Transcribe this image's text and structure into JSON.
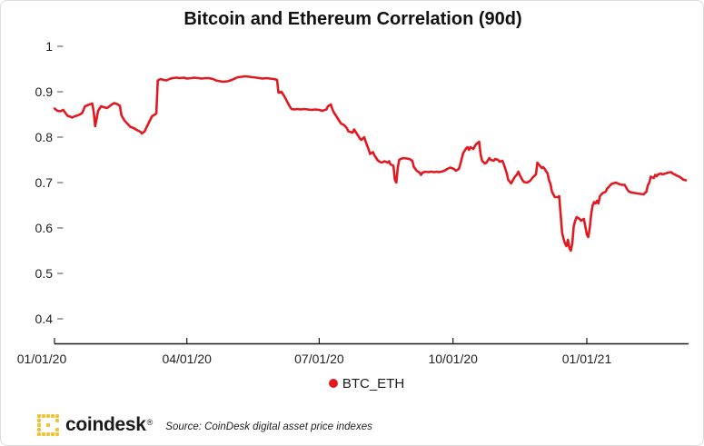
{
  "title": "Bitcoin and Ethereum Correlation (90d)",
  "legend": {
    "label": "BTC_ETH"
  },
  "footer": {
    "brand": "coindesk",
    "registered": "®",
    "source": "Source: CoinDesk digital asset price indexes",
    "logo_color": "#f2c230"
  },
  "colors": {
    "line": "#df1a21",
    "axis": "#1a1a1a",
    "tick_dash": "#8a8a8a",
    "label_text": "#1f1f1f"
  },
  "chart_data": {
    "type": "line",
    "title": "Bitcoin and Ethereum Correlation (90d)",
    "xlabel": "",
    "ylabel": "",
    "x_unit": "days since 2020-01-01",
    "xlim_days": [
      0,
      437
    ],
    "ylim": [
      0.4,
      1.0
    ],
    "grid": false,
    "legend_position": "bottom",
    "xticks": [
      {
        "day": 0,
        "label": "01/01/20"
      },
      {
        "day": 91,
        "label": "04/01/20"
      },
      {
        "day": 182,
        "label": "07/01/20"
      },
      {
        "day": 274,
        "label": "10/01/20"
      },
      {
        "day": 366,
        "label": "01/01/21"
      }
    ],
    "yticks": [
      "1",
      "0.9",
      "0.8",
      "0.7",
      "0.6",
      "0.5",
      "0.4"
    ],
    "ytick_values": [
      1.0,
      0.9,
      0.8,
      0.7,
      0.6,
      0.5,
      0.4
    ],
    "series": [
      {
        "name": "BTC_ETH",
        "color": "#df1a21",
        "points": [
          [
            0,
            0.863
          ],
          [
            2,
            0.858
          ],
          [
            4,
            0.857
          ],
          [
            6,
            0.86
          ],
          [
            9,
            0.847
          ],
          [
            11,
            0.845
          ],
          [
            12,
            0.843
          ],
          [
            14,
            0.846
          ],
          [
            16,
            0.848
          ],
          [
            18,
            0.851
          ],
          [
            19,
            0.853
          ],
          [
            21,
            0.868
          ],
          [
            24,
            0.872
          ],
          [
            26,
            0.874
          ],
          [
            27,
            0.855
          ],
          [
            28,
            0.824
          ],
          [
            30,
            0.858
          ],
          [
            32,
            0.868
          ],
          [
            34,
            0.866
          ],
          [
            36,
            0.864
          ],
          [
            37,
            0.866
          ],
          [
            39,
            0.871
          ],
          [
            41,
            0.875
          ],
          [
            43,
            0.873
          ],
          [
            45,
            0.869
          ],
          [
            46,
            0.848
          ],
          [
            48,
            0.837
          ],
          [
            50,
            0.83
          ],
          [
            52,
            0.823
          ],
          [
            55,
            0.819
          ],
          [
            57,
            0.815
          ],
          [
            59,
            0.812
          ],
          [
            60,
            0.808
          ],
          [
            62,
            0.813
          ],
          [
            63,
            0.82
          ],
          [
            65,
            0.833
          ],
          [
            67,
            0.846
          ],
          [
            69,
            0.85
          ],
          [
            70,
            0.852
          ],
          [
            71,
            0.925
          ],
          [
            73,
            0.928
          ],
          [
            75,
            0.926
          ],
          [
            77,
            0.925
          ],
          [
            79,
            0.928
          ],
          [
            81,
            0.93
          ],
          [
            84,
            0.931
          ],
          [
            86,
            0.93
          ],
          [
            89,
            0.931
          ],
          [
            91,
            0.929
          ],
          [
            94,
            0.93
          ],
          [
            96,
            0.931
          ],
          [
            99,
            0.93
          ],
          [
            101,
            0.929
          ],
          [
            104,
            0.93
          ],
          [
            106,
            0.93
          ],
          [
            109,
            0.928
          ],
          [
            111,
            0.925
          ],
          [
            114,
            0.923
          ],
          [
            116,
            0.922
          ],
          [
            119,
            0.923
          ],
          [
            121,
            0.925
          ],
          [
            124,
            0.929
          ],
          [
            126,
            0.932
          ],
          [
            129,
            0.933
          ],
          [
            131,
            0.934
          ],
          [
            134,
            0.933
          ],
          [
            136,
            0.932
          ],
          [
            139,
            0.931
          ],
          [
            141,
            0.93
          ],
          [
            143,
            0.929
          ],
          [
            146,
            0.93
          ],
          [
            148,
            0.929
          ],
          [
            151,
            0.928
          ],
          [
            153,
            0.926
          ],
          [
            154,
            0.898
          ],
          [
            156,
            0.9
          ],
          [
            158,
            0.89
          ],
          [
            160,
            0.878
          ],
          [
            162,
            0.866
          ],
          [
            163,
            0.862
          ],
          [
            165,
            0.861
          ],
          [
            167,
            0.862
          ],
          [
            169,
            0.861
          ],
          [
            172,
            0.862
          ],
          [
            174,
            0.861
          ],
          [
            177,
            0.86
          ],
          [
            179,
            0.861
          ],
          [
            182,
            0.86
          ],
          [
            184,
            0.858
          ],
          [
            187,
            0.861
          ],
          [
            188,
            0.868
          ],
          [
            190,
            0.872
          ],
          [
            191,
            0.862
          ],
          [
            192,
            0.855
          ],
          [
            193,
            0.85
          ],
          [
            195,
            0.84
          ],
          [
            197,
            0.83
          ],
          [
            199,
            0.827
          ],
          [
            201,
            0.82
          ],
          [
            202,
            0.813
          ],
          [
            205,
            0.81
          ],
          [
            206,
            0.817
          ],
          [
            208,
            0.807
          ],
          [
            210,
            0.797
          ],
          [
            211,
            0.794
          ],
          [
            213,
            0.8
          ],
          [
            214,
            0.79
          ],
          [
            216,
            0.773
          ],
          [
            217,
            0.763
          ],
          [
            219,
            0.767
          ],
          [
            220,
            0.76
          ],
          [
            222,
            0.75
          ],
          [
            223,
            0.747
          ],
          [
            225,
            0.744
          ],
          [
            227,
            0.747
          ],
          [
            229,
            0.744
          ],
          [
            230,
            0.747
          ],
          [
            231,
            0.74
          ],
          [
            233,
            0.737
          ],
          [
            234,
            0.706
          ],
          [
            235,
            0.7
          ],
          [
            236,
            0.733
          ],
          [
            237,
            0.75
          ],
          [
            238,
            0.752
          ],
          [
            240,
            0.754
          ],
          [
            242,
            0.753
          ],
          [
            244,
            0.752
          ],
          [
            246,
            0.748
          ],
          [
            247,
            0.735
          ],
          [
            249,
            0.726
          ],
          [
            251,
            0.722
          ],
          [
            252,
            0.717
          ],
          [
            253,
            0.722
          ],
          [
            255,
            0.724
          ],
          [
            257,
            0.723
          ],
          [
            259,
            0.724
          ],
          [
            261,
            0.723
          ],
          [
            263,
            0.724
          ],
          [
            264,
            0.723
          ],
          [
            266,
            0.724
          ],
          [
            268,
            0.726
          ],
          [
            270,
            0.73
          ],
          [
            272,
            0.733
          ],
          [
            274,
            0.731
          ],
          [
            275,
            0.729
          ],
          [
            276,
            0.726
          ],
          [
            278,
            0.73
          ],
          [
            279,
            0.74
          ],
          [
            281,
            0.765
          ],
          [
            283,
            0.775
          ],
          [
            284,
            0.778
          ],
          [
            285,
            0.772
          ],
          [
            286,
            0.778
          ],
          [
            288,
            0.774
          ],
          [
            289,
            0.78
          ],
          [
            290,
            0.785
          ],
          [
            292,
            0.79
          ],
          [
            293,
            0.762
          ],
          [
            294,
            0.748
          ],
          [
            296,
            0.742
          ],
          [
            297,
            0.744
          ],
          [
            299,
            0.754
          ],
          [
            300,
            0.75
          ],
          [
            302,
            0.748
          ],
          [
            303,
            0.752
          ],
          [
            305,
            0.75
          ],
          [
            306,
            0.746
          ],
          [
            308,
            0.748
          ],
          [
            309,
            0.74
          ],
          [
            311,
            0.72
          ],
          [
            312,
            0.706
          ],
          [
            314,
            0.698
          ],
          [
            316,
            0.71
          ],
          [
            318,
            0.718
          ],
          [
            319,
            0.724
          ],
          [
            320,
            0.716
          ],
          [
            322,
            0.704
          ],
          [
            323,
            0.701
          ],
          [
            325,
            0.7
          ],
          [
            327,
            0.704
          ],
          [
            328,
            0.708
          ],
          [
            329,
            0.712
          ],
          [
            331,
            0.718
          ],
          [
            332,
            0.744
          ],
          [
            334,
            0.736
          ],
          [
            335,
            0.732
          ],
          [
            336,
            0.734
          ],
          [
            337,
            0.73
          ],
          [
            339,
            0.72
          ],
          [
            340,
            0.705
          ],
          [
            341,
            0.697
          ],
          [
            342,
            0.68
          ],
          [
            343,
            0.674
          ],
          [
            344,
            0.668
          ],
          [
            346,
            0.668
          ],
          [
            347,
            0.67
          ],
          [
            348,
            0.63
          ],
          [
            349,
            0.59
          ],
          [
            350,
            0.576
          ],
          [
            351,
            0.566
          ],
          [
            352,
            0.56
          ],
          [
            353,
            0.574
          ],
          [
            354,
            0.556
          ],
          [
            355,
            0.55
          ],
          [
            356,
            0.566
          ],
          [
            357,
            0.604
          ],
          [
            358,
            0.616
          ],
          [
            359,
            0.624
          ],
          [
            360,
            0.622
          ],
          [
            361,
            0.62
          ],
          [
            362,
            0.616
          ],
          [
            364,
            0.62
          ],
          [
            366,
            0.586
          ],
          [
            367,
            0.58
          ],
          [
            368,
            0.6
          ],
          [
            369,
            0.63
          ],
          [
            370,
            0.65
          ],
          [
            371,
            0.657
          ],
          [
            372,
            0.654
          ],
          [
            373,
            0.66
          ],
          [
            374,
            0.654
          ],
          [
            375,
            0.67
          ],
          [
            376,
            0.674
          ],
          [
            377,
            0.677
          ],
          [
            379,
            0.68
          ],
          [
            380,
            0.687
          ],
          [
            381,
            0.69
          ],
          [
            383,
            0.697
          ],
          [
            384,
            0.698
          ],
          [
            386,
            0.7
          ],
          [
            388,
            0.697
          ],
          [
            390,
            0.695
          ],
          [
            392,
            0.695
          ],
          [
            394,
            0.684
          ],
          [
            395,
            0.68
          ],
          [
            397,
            0.678
          ],
          [
            399,
            0.677
          ],
          [
            401,
            0.676
          ],
          [
            403,
            0.675
          ],
          [
            405,
            0.674
          ],
          [
            407,
            0.68
          ],
          [
            408,
            0.694
          ],
          [
            409,
            0.7
          ],
          [
            410,
            0.713
          ],
          [
            412,
            0.71
          ],
          [
            413,
            0.717
          ],
          [
            414,
            0.714
          ],
          [
            415,
            0.718
          ],
          [
            417,
            0.72
          ],
          [
            418,
            0.718
          ],
          [
            420,
            0.72
          ],
          [
            422,
            0.722
          ],
          [
            424,
            0.723
          ],
          [
            425,
            0.72
          ],
          [
            427,
            0.717
          ],
          [
            428,
            0.715
          ],
          [
            429,
            0.714
          ],
          [
            431,
            0.71
          ],
          [
            432,
            0.707
          ],
          [
            434,
            0.705
          ]
        ]
      }
    ]
  }
}
